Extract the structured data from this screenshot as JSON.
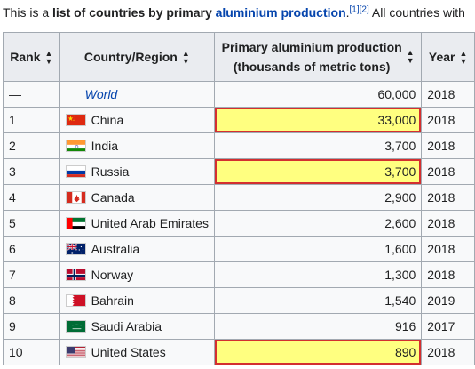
{
  "intro": {
    "prefix": "This is a ",
    "bold": "list of countries by primary ",
    "link": "aluminium production",
    "period": ".",
    "refs": "[1][2]",
    "suffix": " All countries with"
  },
  "table": {
    "headers": {
      "rank": "Rank",
      "country": "Country/Region",
      "production_line1": "Primary aluminium production",
      "production_line2": "(thousands of metric tons)",
      "year": "Year"
    },
    "sort_icon": "sort-icon",
    "rows": [
      {
        "rank": "—",
        "country": "World",
        "flag": "",
        "production": "60,000",
        "year": "2018",
        "highlight": false
      },
      {
        "rank": "1",
        "country": "China",
        "flag": "china-flag-icon",
        "production": "33,000",
        "year": "2018",
        "highlight": true
      },
      {
        "rank": "2",
        "country": "India",
        "flag": "india-flag-icon",
        "production": "3,700",
        "year": "2018",
        "highlight": false
      },
      {
        "rank": "3",
        "country": "Russia",
        "flag": "russia-flag-icon",
        "production": "3,700",
        "year": "2018",
        "highlight": true
      },
      {
        "rank": "4",
        "country": "Canada",
        "flag": "canada-flag-icon",
        "production": "2,900",
        "year": "2018",
        "highlight": false
      },
      {
        "rank": "5",
        "country": "United Arab Emirates",
        "flag": "uae-flag-icon",
        "production": "2,600",
        "year": "2018",
        "highlight": false
      },
      {
        "rank": "6",
        "country": "Australia",
        "flag": "australia-flag-icon",
        "production": "1,600",
        "year": "2018",
        "highlight": false
      },
      {
        "rank": "7",
        "country": "Norway",
        "flag": "norway-flag-icon",
        "production": "1,300",
        "year": "2018",
        "highlight": false
      },
      {
        "rank": "8",
        "country": "Bahrain",
        "flag": "bahrain-flag-icon",
        "production": "1,540",
        "year": "2019",
        "highlight": false
      },
      {
        "rank": "9",
        "country": "Saudi Arabia",
        "flag": "saudi-arabia-flag-icon",
        "production": "916",
        "year": "2017",
        "highlight": false
      },
      {
        "rank": "10",
        "country": "United States",
        "flag": "usa-flag-icon",
        "production": "890",
        "year": "2018",
        "highlight": true
      }
    ]
  },
  "colors": {
    "link": "#0645ad",
    "highlight_fill": "#ffff80",
    "highlight_border": "#d32f2f",
    "header_bg": "#eaecf0",
    "border": "#a2a9b1"
  }
}
